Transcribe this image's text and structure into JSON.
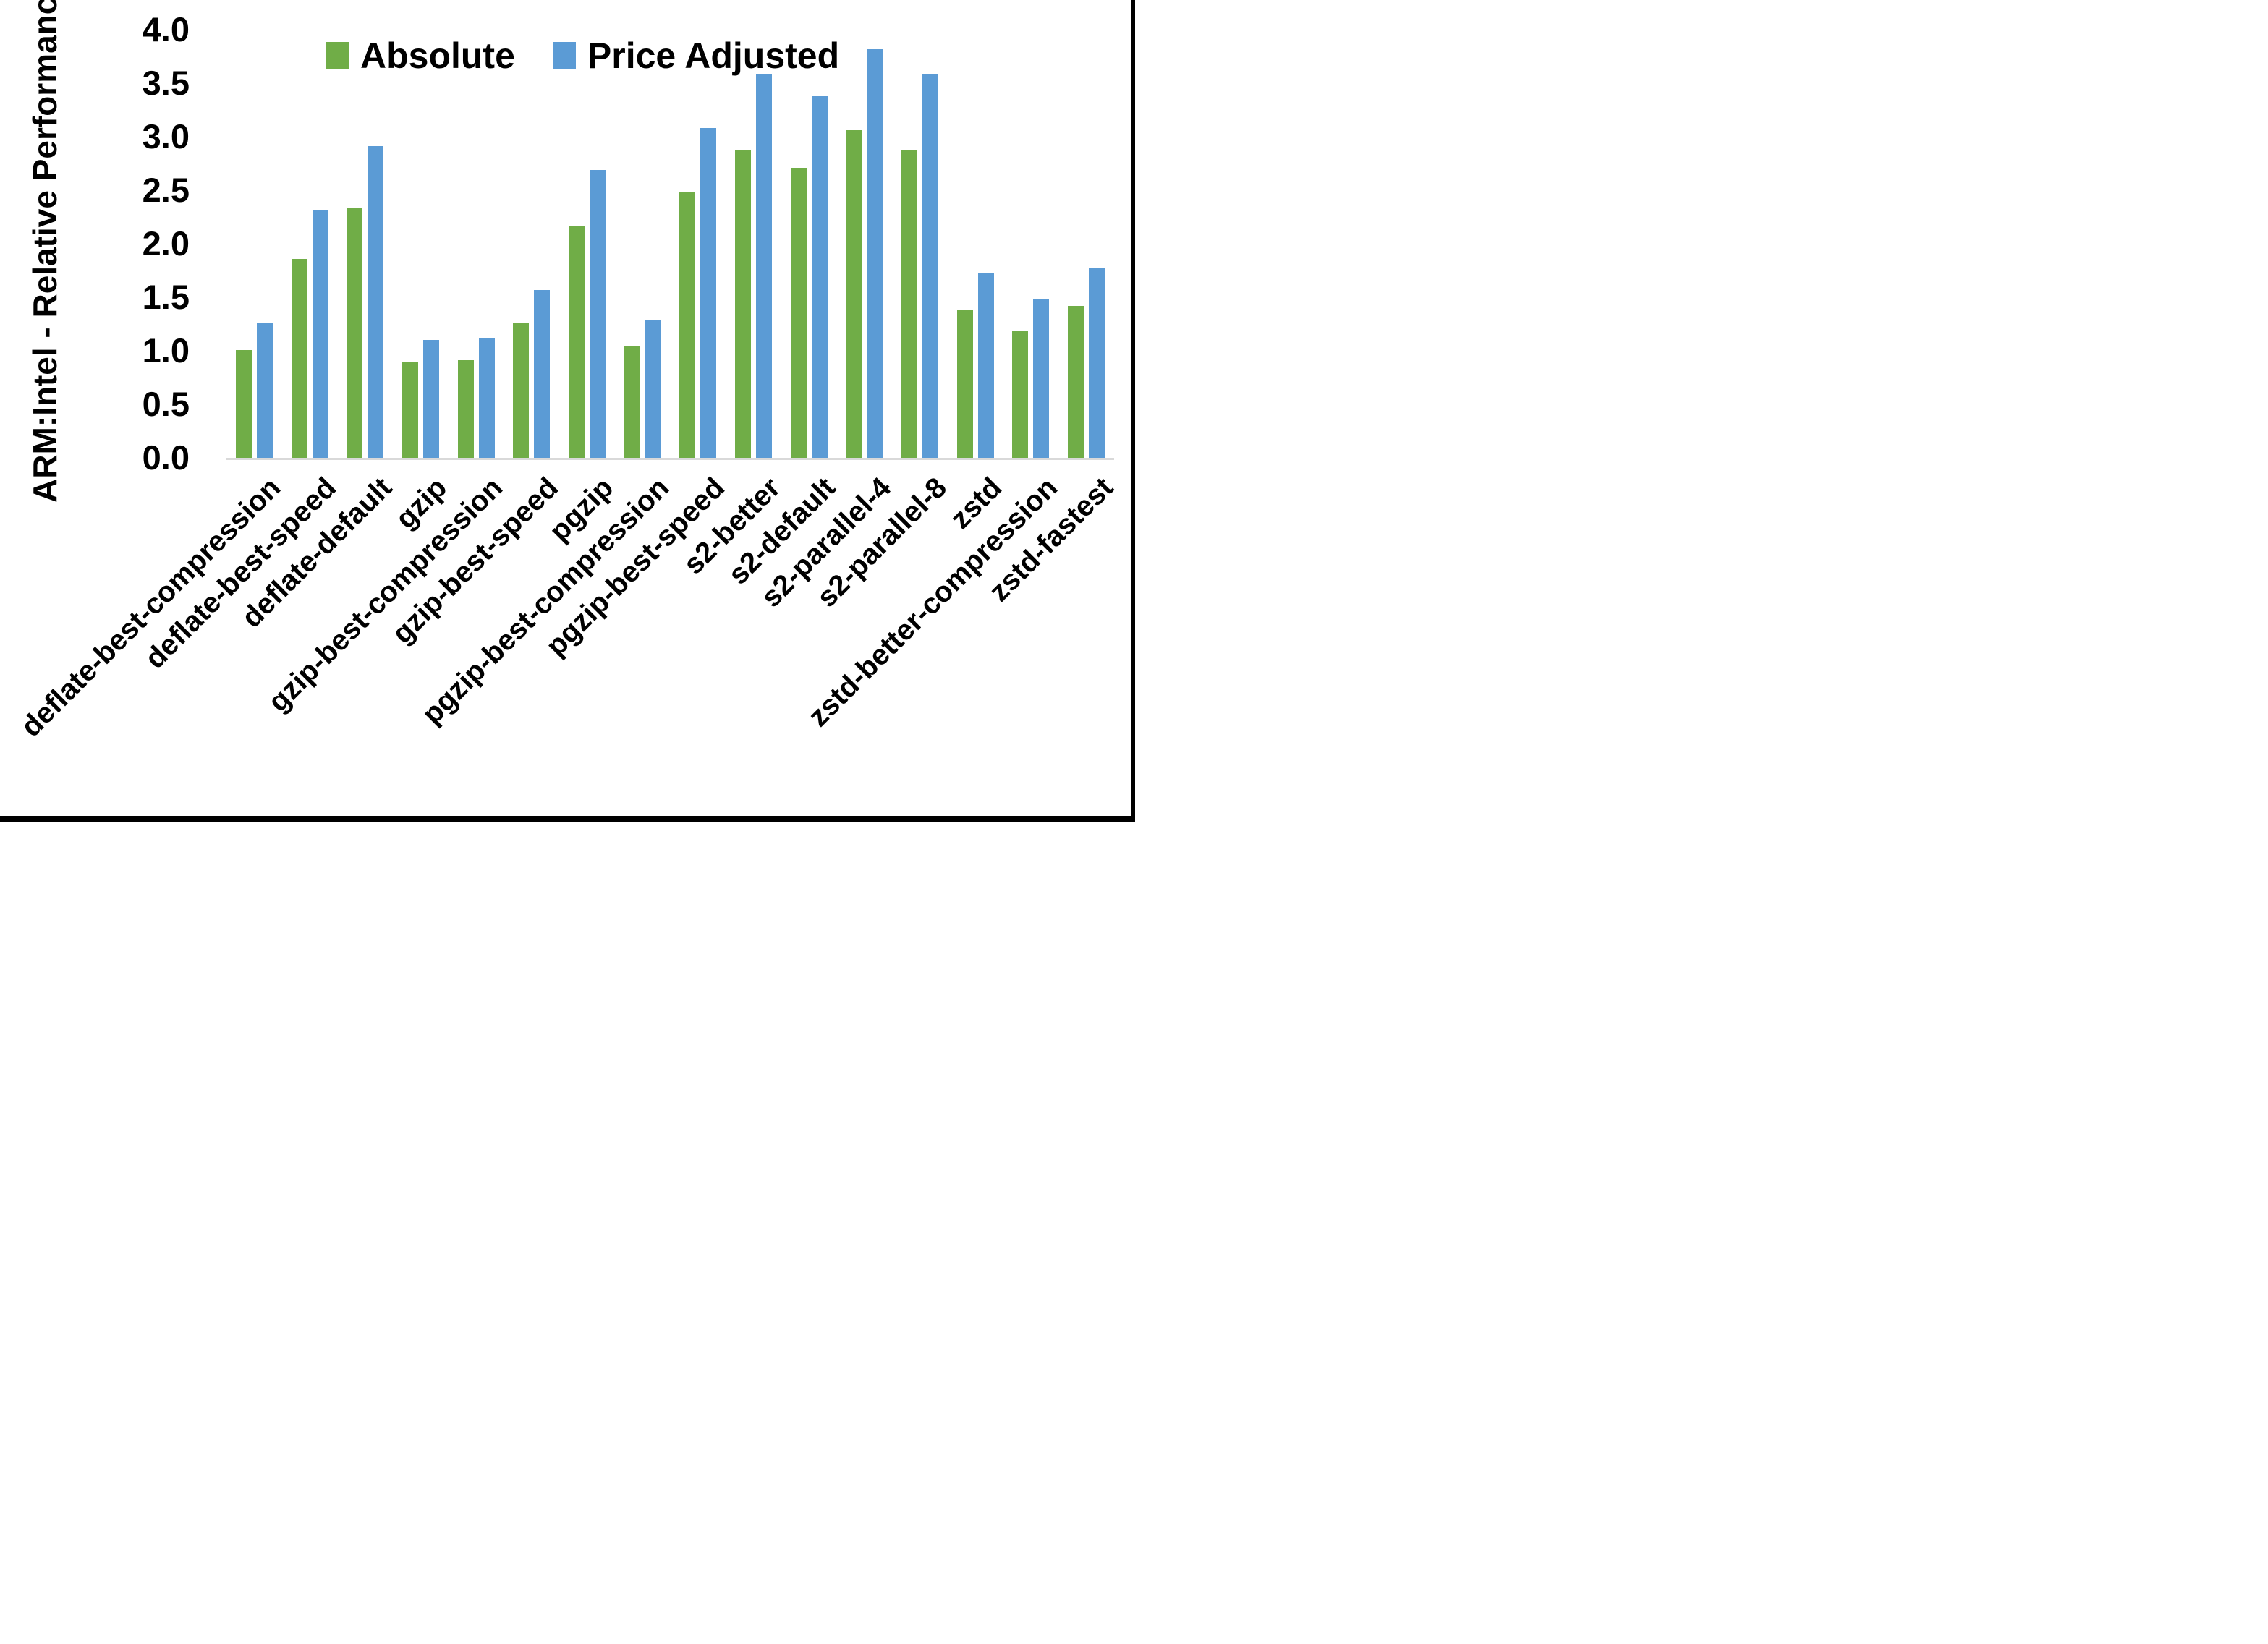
{
  "chart_data": {
    "type": "bar",
    "title": "",
    "ylabel": "ARM:Intel - Relative Performance",
    "xlabel": "",
    "ylim": [
      0.0,
      4.0
    ],
    "ytick_step": 0.5,
    "ytick_labels": [
      "0.0",
      "0.5",
      "1.0",
      "1.5",
      "2.0",
      "2.5",
      "3.0",
      "3.5",
      "4.0"
    ],
    "grid": false,
    "legend_position": "top-center",
    "axis_line_color": "#d9d9d9",
    "categories": [
      "deflate-best-compression",
      "deflate-best-speed",
      "deflate-default",
      "gzip",
      "gzip-best-compression",
      "gzip-best-speed",
      "pgzip",
      "pgzip-best-compression",
      "pgzip-best-speed",
      "s2-better",
      "s2-default",
      "s2-parallel-4",
      "s2-parallel-8",
      "zstd",
      "zstd-better-compression",
      "zstd-fastest"
    ],
    "series": [
      {
        "name": "Absolute",
        "color": "#70ad47",
        "values": [
          1.01,
          1.86,
          2.34,
          0.89,
          0.91,
          1.26,
          2.16,
          1.04,
          2.48,
          2.88,
          2.71,
          3.06,
          2.88,
          1.38,
          1.18,
          1.42
        ]
      },
      {
        "name": "Price Adjusted",
        "color": "#5b9bd5",
        "values": [
          1.26,
          2.32,
          2.91,
          1.1,
          1.12,
          1.57,
          2.69,
          1.29,
          3.08,
          3.58,
          3.38,
          3.82,
          3.58,
          1.73,
          1.48,
          1.78
        ]
      }
    ]
  }
}
